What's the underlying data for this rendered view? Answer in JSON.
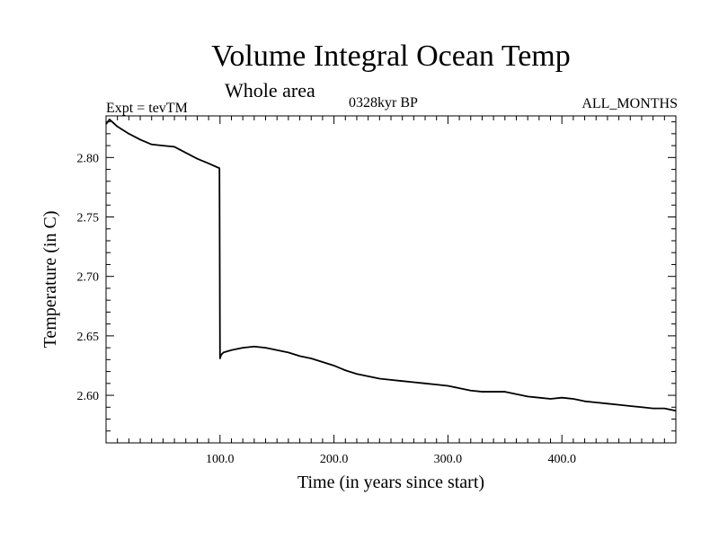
{
  "chart_data": {
    "type": "line",
    "title": "Volume Integral Ocean Temp",
    "subtitle": "Whole area",
    "annotations": {
      "experiment": "Expt = tevTM",
      "period": "0328kyr BP",
      "months": "ALL_MONTHS"
    },
    "xlabel": "Time (in years since start)",
    "ylabel": "Temperature (in C)",
    "xlim": [
      0,
      500
    ],
    "ylim": [
      2.56,
      2.835
    ],
    "xticks_labeled": [
      {
        "value": 100,
        "label": "100.0"
      },
      {
        "value": 200,
        "label": "200.0"
      },
      {
        "value": 300,
        "label": "300.0"
      },
      {
        "value": 400,
        "label": "400.0"
      }
    ],
    "yticks_labeled": [
      {
        "value": 2.6,
        "label": "2.60"
      },
      {
        "value": 2.65,
        "label": "2.65"
      },
      {
        "value": 2.7,
        "label": "2.70"
      },
      {
        "value": 2.75,
        "label": "2.75"
      },
      {
        "value": 2.8,
        "label": "2.80"
      }
    ],
    "grid": false,
    "series": [
      {
        "color": "#000000",
        "x": [
          0,
          3,
          10,
          20,
          30,
          40,
          50,
          60,
          70,
          80,
          90,
          99.5,
          100,
          101,
          103,
          110,
          120,
          130,
          140,
          150,
          160,
          170,
          180,
          190,
          200,
          210,
          220,
          230,
          240,
          250,
          260,
          270,
          280,
          290,
          300,
          310,
          320,
          330,
          340,
          350,
          360,
          370,
          380,
          390,
          400,
          410,
          420,
          430,
          440,
          450,
          460,
          470,
          480,
          490,
          500
        ],
        "y": [
          2.828,
          2.832,
          2.826,
          2.82,
          2.815,
          2.811,
          2.81,
          2.809,
          2.804,
          2.799,
          2.795,
          2.791,
          2.631,
          2.634,
          2.636,
          2.638,
          2.64,
          2.641,
          2.64,
          2.638,
          2.636,
          2.633,
          2.631,
          2.628,
          2.625,
          2.621,
          2.618,
          2.616,
          2.614,
          2.613,
          2.612,
          2.611,
          2.61,
          2.609,
          2.608,
          2.606,
          2.604,
          2.603,
          2.603,
          2.603,
          2.601,
          2.599,
          2.598,
          2.597,
          2.598,
          2.597,
          2.595,
          2.594,
          2.593,
          2.592,
          2.591,
          2.59,
          2.589,
          2.589,
          2.587
        ]
      }
    ]
  }
}
